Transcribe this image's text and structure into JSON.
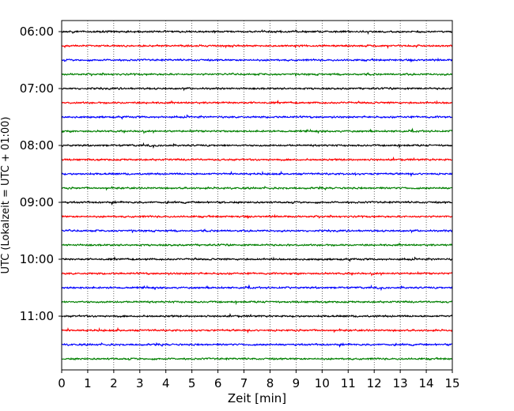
{
  "chart_data": {
    "type": "line",
    "title": "",
    "xlabel": "Zeit  [min]",
    "ylabel": "UTC (Lokalzeit = UTC + 01:00)",
    "xlim": [
      0,
      15
    ],
    "x_ticks": [
      0,
      1,
      2,
      3,
      4,
      5,
      6,
      7,
      8,
      9,
      10,
      11,
      12,
      13,
      14,
      15
    ],
    "x_grid": "dotted vertical lines at each minute",
    "y_ticks": [
      "06:00",
      "07:00",
      "08:00",
      "09:00",
      "10:00",
      "11:00"
    ],
    "trace_interval_minutes": 15,
    "trace_start": "06:00",
    "trace_colors": [
      "#000000",
      "#ff0000",
      "#0000ff",
      "#008000"
    ],
    "traces": [
      {
        "start": "06:00",
        "color": "#000000"
      },
      {
        "start": "06:15",
        "color": "#ff0000"
      },
      {
        "start": "06:30",
        "color": "#0000ff"
      },
      {
        "start": "06:45",
        "color": "#008000"
      },
      {
        "start": "07:00",
        "color": "#000000"
      },
      {
        "start": "07:15",
        "color": "#ff0000"
      },
      {
        "start": "07:30",
        "color": "#0000ff"
      },
      {
        "start": "07:45",
        "color": "#008000"
      },
      {
        "start": "08:00",
        "color": "#000000"
      },
      {
        "start": "08:15",
        "color": "#ff0000"
      },
      {
        "start": "08:30",
        "color": "#0000ff"
      },
      {
        "start": "08:45",
        "color": "#008000"
      },
      {
        "start": "09:00",
        "color": "#000000"
      },
      {
        "start": "09:15",
        "color": "#ff0000"
      },
      {
        "start": "09:30",
        "color": "#0000ff"
      },
      {
        "start": "09:45",
        "color": "#008000"
      },
      {
        "start": "10:00",
        "color": "#000000"
      },
      {
        "start": "10:15",
        "color": "#ff0000"
      },
      {
        "start": "10:30",
        "color": "#0000ff"
      },
      {
        "start": "10:45",
        "color": "#008000"
      },
      {
        "start": "11:00",
        "color": "#000000"
      },
      {
        "start": "11:15",
        "color": "#ff0000"
      },
      {
        "start": "11:30",
        "color": "#0000ff"
      },
      {
        "start": "11:45",
        "color": "#008000"
      }
    ]
  }
}
